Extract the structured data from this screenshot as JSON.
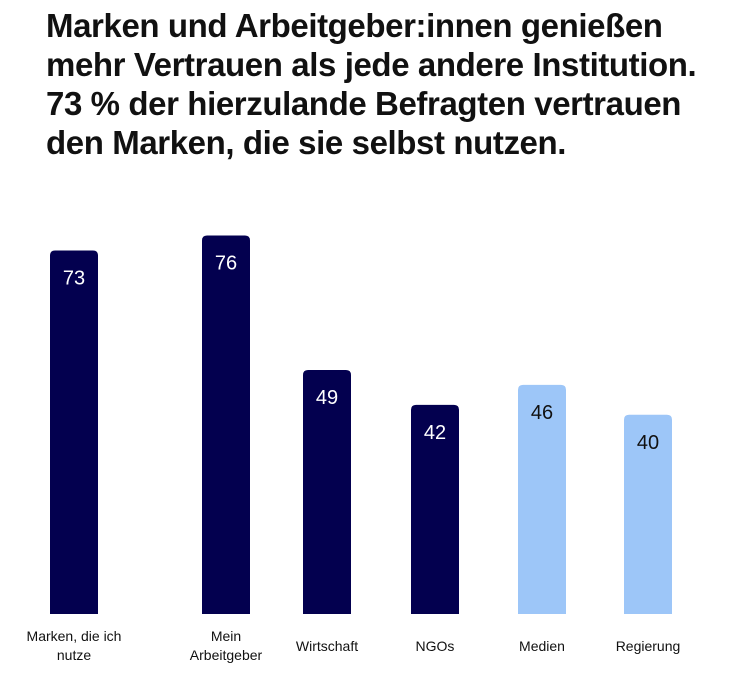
{
  "title": "Marken und Arbeitgeber:innen genießen mehr Vertrauen als jede andere Institution. 73 % der hierzulande Befragten vertrauen den Marken, die sie selbst nutzen.",
  "colors": {
    "dark": "#03004f",
    "light": "#9dc6f8",
    "label_on_dark": "#ffffff",
    "label_on_light": "#111111"
  },
  "chart_data": {
    "type": "bar",
    "categories": [
      "Marken, die ich nutze",
      "Mein Arbeitgeber",
      "Wirtschaft",
      "NGOs",
      "Medien",
      "Regierung"
    ],
    "category_lines": [
      [
        "Marken, die ich",
        "nutze"
      ],
      [
        "Mein",
        "Arbeitgeber"
      ],
      [
        "Wirtschaft"
      ],
      [
        "NGOs"
      ],
      [
        "Medien"
      ],
      [
        "Regierung"
      ]
    ],
    "values": [
      73,
      76,
      49,
      42,
      46,
      40
    ],
    "bar_colors": [
      "dark",
      "dark",
      "dark",
      "dark",
      "light",
      "light"
    ],
    "ylim": [
      0,
      80
    ],
    "grid": false,
    "legend": "none"
  }
}
